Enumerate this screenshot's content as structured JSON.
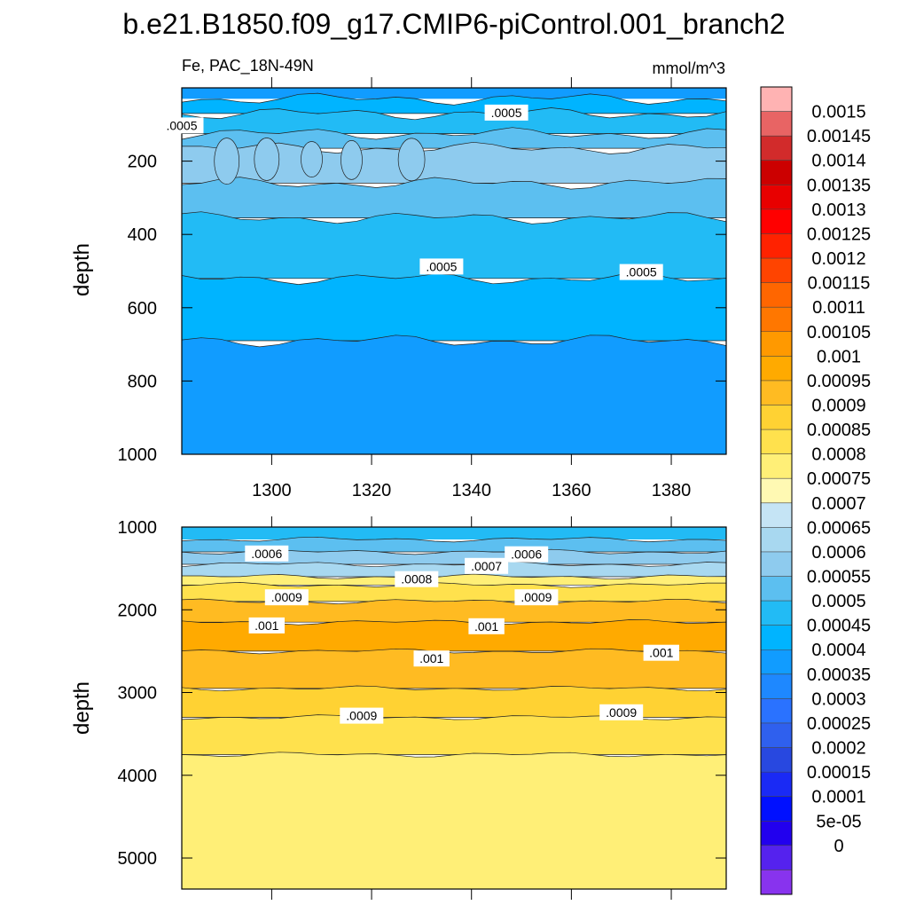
{
  "title": "b.e21.B1850.f09_g17.CMIP6-piControl.001_branch2",
  "chart_data": {
    "type": "contour",
    "variable_label": "Fe, PAC_18N-49N",
    "units": "mmol/m^3",
    "x_ticks": [
      1300,
      1320,
      1340,
      1360,
      1380
    ],
    "x_range": [
      1282,
      1391
    ],
    "panels": [
      {
        "id": "upper",
        "ylabel": "depth",
        "ylim": [
          0,
          1000
        ],
        "y_ticks": [
          200,
          400,
          600,
          800,
          1000
        ],
        "fill_bands": [
          {
            "top": 0,
            "bottom": 30,
            "value": 0.0004
          },
          {
            "top": 30,
            "bottom": 70,
            "value": 0.00045
          },
          {
            "top": 70,
            "bottom": 125,
            "value": 0.0005
          },
          {
            "top": 125,
            "bottom": 165,
            "value": 0.00055
          },
          {
            "top": 165,
            "bottom": 260,
            "value": 0.0006
          },
          {
            "top": 260,
            "bottom": 355,
            "value": 0.00055
          },
          {
            "top": 355,
            "bottom": 520,
            "value": 0.0005
          },
          {
            "top": 520,
            "bottom": 690,
            "value": 0.00045
          },
          {
            "top": 690,
            "bottom": 1000,
            "value": 0.0004
          }
        ],
        "contour_labels": [
          {
            "text": ".0005",
            "x": 1282,
            "depth": 105
          },
          {
            "text": ".0005",
            "x": 1347,
            "depth": 70
          },
          {
            "text": ".0005",
            "x": 1334,
            "depth": 490
          },
          {
            "text": ".0005",
            "x": 1374,
            "depth": 505
          }
        ]
      },
      {
        "id": "lower",
        "ylabel": "depth",
        "ylim": [
          1000,
          5375
        ],
        "y_ticks": [
          1000,
          2000,
          3000,
          4000,
          5000
        ],
        "fill_bands": [
          {
            "top": 1000,
            "bottom": 1150,
            "value": 0.0005
          },
          {
            "top": 1150,
            "bottom": 1300,
            "value": 0.00055
          },
          {
            "top": 1300,
            "bottom": 1450,
            "value": 0.0006
          },
          {
            "top": 1450,
            "bottom": 1600,
            "value": 0.00065
          },
          {
            "top": 1600,
            "bottom": 1700,
            "value": 0.0008
          },
          {
            "top": 1700,
            "bottom": 1900,
            "value": 0.00085
          },
          {
            "top": 1900,
            "bottom": 2150,
            "value": 0.00095
          },
          {
            "top": 2150,
            "bottom": 2500,
            "value": 0.001
          },
          {
            "top": 2500,
            "bottom": 2950,
            "value": 0.00095
          },
          {
            "top": 2950,
            "bottom": 3300,
            "value": 0.0009
          },
          {
            "top": 3300,
            "bottom": 3750,
            "value": 0.00085
          },
          {
            "top": 3750,
            "bottom": 5375,
            "value": 0.0008
          }
        ],
        "contour_labels": [
          {
            "text": ".0006",
            "x": 1299,
            "depth": 1330
          },
          {
            "text": ".0006",
            "x": 1351,
            "depth": 1340
          },
          {
            "text": ".0007",
            "x": 1343,
            "depth": 1480
          },
          {
            "text": ".0008",
            "x": 1329,
            "depth": 1640
          },
          {
            "text": ".0009",
            "x": 1303,
            "depth": 1860
          },
          {
            "text": ".0009",
            "x": 1353,
            "depth": 1860
          },
          {
            "text": ".001",
            "x": 1299,
            "depth": 2200
          },
          {
            "text": ".001",
            "x": 1343,
            "depth": 2210
          },
          {
            "text": ".001",
            "x": 1332,
            "depth": 2600
          },
          {
            "text": ".001",
            "x": 1378,
            "depth": 2530
          },
          {
            "text": ".0009",
            "x": 1318,
            "depth": 3290
          },
          {
            "text": ".0009",
            "x": 1370,
            "depth": 3250
          }
        ]
      }
    ],
    "colorbar": {
      "labels": [
        "0.0015",
        "0.00145",
        "0.0014",
        "0.00135",
        "0.0013",
        "0.00125",
        "0.0012",
        "0.00115",
        "0.0011",
        "0.00105",
        "0.001",
        "0.00095",
        "0.0009",
        "0.00085",
        "0.0008",
        "0.00075",
        "0.0007",
        "0.00065",
        "0.0006",
        "0.00055",
        "0.0005",
        "0.00045",
        "0.0004",
        "0.00035",
        "0.0003",
        "0.00025",
        "0.0002",
        "0.00015",
        "0.0001",
        "5e-05",
        "0"
      ],
      "colors_top_to_bottom": [
        "#ffb3b3",
        "#e86464",
        "#d22b2b",
        "#cc0000",
        "#e80000",
        "#ff0000",
        "#ff2200",
        "#ff4400",
        "#ff6600",
        "#ff7700",
        "#ff9900",
        "#ffaa00",
        "#ffbb22",
        "#ffd233",
        "#ffe14d",
        "#ffef77",
        "#fff9b3",
        "#c5e4f5",
        "#a8d8f0",
        "#8ecbee",
        "#5cbff0",
        "#22bbf5",
        "#00b4ff",
        "#119cff",
        "#1e88ff",
        "#2a72ff",
        "#2f60ee",
        "#2848e0",
        "#1a2af5",
        "#0010ff",
        "#2200ee",
        "#5522ee",
        "#8833ee"
      ]
    }
  }
}
